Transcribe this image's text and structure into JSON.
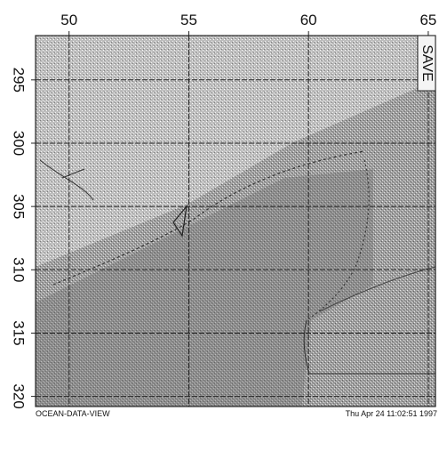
{
  "chart_data": {
    "type": "map",
    "xlim": [
      48.6,
      65.3
    ],
    "ylim": [
      291.5,
      320.8
    ],
    "xticks": [
      50,
      55,
      60,
      65
    ],
    "yticks": [
      295,
      300,
      305,
      310,
      315,
      320
    ],
    "grid": true,
    "button": "SAVE",
    "footer_left": "OCEAN-DATA-VIEW",
    "footer_right": "Thu Apr 24 11:02:51 1997"
  }
}
